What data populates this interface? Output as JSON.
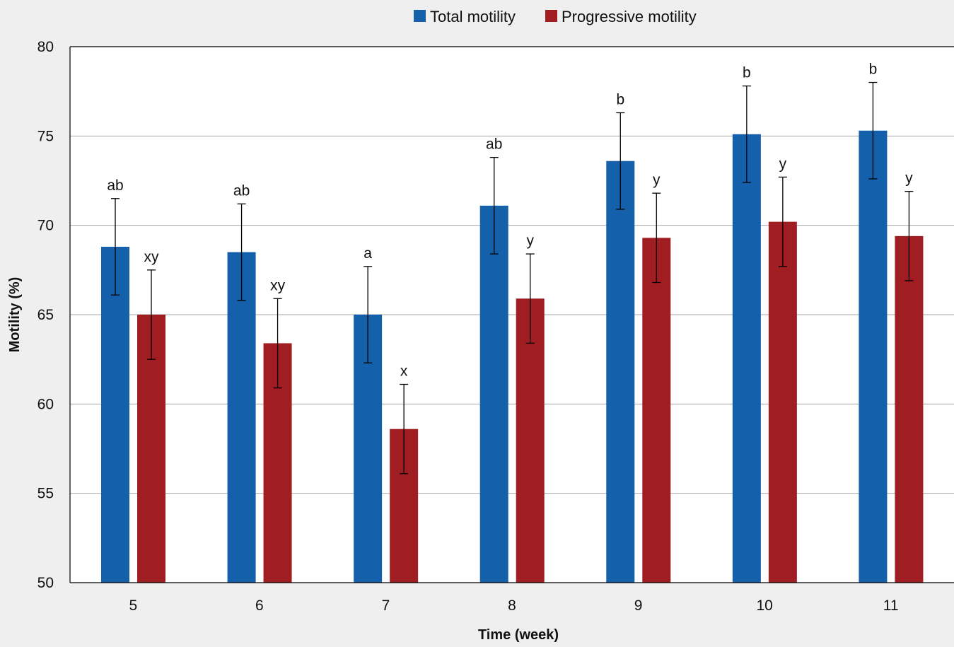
{
  "chart_data": {
    "type": "bar",
    "xlabel": "Time (week)",
    "ylabel": "Motility (%)",
    "ylim": [
      50,
      80
    ],
    "yticks": [
      50,
      55,
      60,
      65,
      70,
      75,
      80
    ],
    "grid": true,
    "legend_position": "top",
    "categories": [
      "5",
      "6",
      "7",
      "8",
      "9",
      "10",
      "11"
    ],
    "series": [
      {
        "name": "Total motility",
        "color": "#1560ab",
        "values": [
          68.8,
          68.5,
          65.0,
          71.1,
          73.6,
          75.1,
          75.3
        ],
        "error": [
          2.7,
          2.7,
          2.7,
          2.7,
          2.7,
          2.7,
          2.7
        ],
        "significance": [
          "ab",
          "ab",
          "a",
          "ab",
          "b",
          "b",
          "b"
        ]
      },
      {
        "name": "Progressive motility",
        "color": "#a01e22",
        "values": [
          65.0,
          63.4,
          58.6,
          65.9,
          69.3,
          70.2,
          69.4
        ],
        "error": [
          2.5,
          2.5,
          2.5,
          2.5,
          2.5,
          2.5,
          2.5
        ],
        "significance": [
          "xy",
          "xy",
          "x",
          "y",
          "y",
          "y",
          "y"
        ]
      }
    ]
  }
}
